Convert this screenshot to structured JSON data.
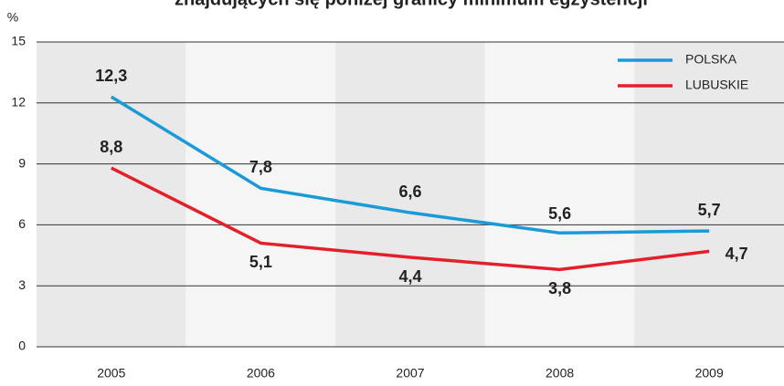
{
  "chart_data": {
    "type": "line",
    "title": "znajdujących się poniżej granicy minimum egzystencji",
    "y_label": "%",
    "categories": [
      "2005",
      "2006",
      "2007",
      "2008",
      "2009"
    ],
    "series": [
      {
        "name": "POLSKA",
        "color": "#1a9ad6",
        "values": [
          12.3,
          7.8,
          6.6,
          5.6,
          5.7
        ],
        "value_labels": [
          "12,3",
          "7,8",
          "6,6",
          "5,6",
          "5,7"
        ]
      },
      {
        "name": "LUBUSKIE",
        "color": "#e3202a",
        "values": [
          8.8,
          5.1,
          4.4,
          3.8,
          4.7
        ],
        "value_labels": [
          "8,8",
          "5,1",
          "4,4",
          "3,8",
          "4,7"
        ]
      }
    ],
    "ylim": [
      0,
      15
    ],
    "yticks": [
      0,
      3,
      6,
      9,
      12,
      15
    ],
    "grid": true,
    "legend": "top-right"
  }
}
